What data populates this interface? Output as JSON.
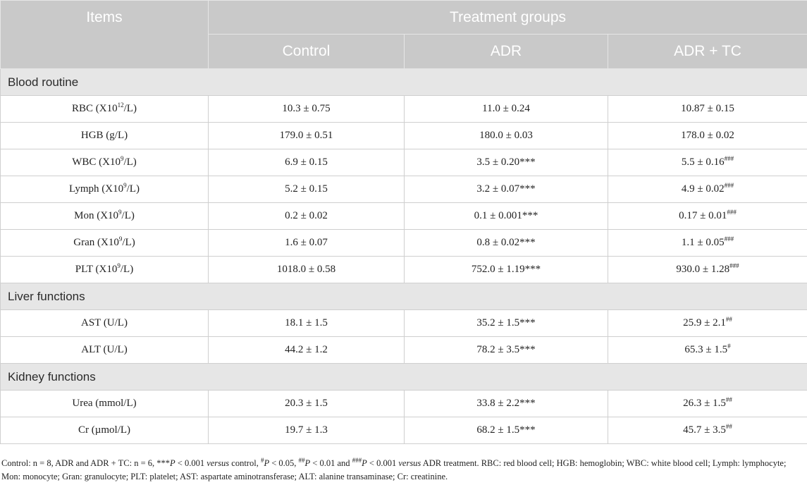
{
  "table": {
    "header": {
      "items": "Items",
      "treatment_groups": "Treatment groups",
      "groups": [
        "Control",
        "ADR",
        "ADR + TC"
      ]
    },
    "sections": [
      {
        "title": "Blood routine",
        "rows": [
          {
            "item_main": "RBC (X10",
            "item_sup": "12",
            "item_tail": "/L)",
            "cells": [
              {
                "value": "10.3 ± 0.75",
                "mark": ""
              },
              {
                "value": "11.0 ± 0.24",
                "mark": ""
              },
              {
                "value": "10.87 ± 0.15",
                "mark": ""
              }
            ]
          },
          {
            "item_main": "HGB (g/L)",
            "item_sup": "",
            "item_tail": "",
            "cells": [
              {
                "value": "179.0 ± 0.51",
                "mark": ""
              },
              {
                "value": "180.0 ± 0.03",
                "mark": ""
              },
              {
                "value": "178.0 ± 0.02",
                "mark": ""
              }
            ]
          },
          {
            "item_main": "WBC (X10",
            "item_sup": "9",
            "item_tail": "/L)",
            "cells": [
              {
                "value": "6.9 ± 0.15",
                "mark": ""
              },
              {
                "value": "3.5 ± 0.20***",
                "mark": ""
              },
              {
                "value": "5.5 ± 0.16",
                "mark": "###"
              }
            ]
          },
          {
            "item_main": "Lymph (X10",
            "item_sup": "9",
            "item_tail": "/L)",
            "cells": [
              {
                "value": "5.2 ± 0.15",
                "mark": ""
              },
              {
                "value": "3.2 ± 0.07***",
                "mark": ""
              },
              {
                "value": "4.9 ± 0.02",
                "mark": "###"
              }
            ]
          },
          {
            "item_main": "Mon (X10",
            "item_sup": "9",
            "item_tail": "/L)",
            "cells": [
              {
                "value": "0.2 ± 0.02",
                "mark": ""
              },
              {
                "value": "0.1 ± 0.001***",
                "mark": ""
              },
              {
                "value": "0.17 ± 0.01",
                "mark": "###"
              }
            ]
          },
          {
            "item_main": "Gran (X10",
            "item_sup": "9",
            "item_tail": "/L)",
            "cells": [
              {
                "value": "1.6 ± 0.07",
                "mark": ""
              },
              {
                "value": "0.8 ± 0.02***",
                "mark": ""
              },
              {
                "value": "1.1 ± 0.05",
                "mark": "###"
              }
            ]
          },
          {
            "item_main": "PLT (X10",
            "item_sup": "9",
            "item_tail": "/L)",
            "cells": [
              {
                "value": "1018.0 ± 0.58",
                "mark": ""
              },
              {
                "value": "752.0 ± 1.19***",
                "mark": ""
              },
              {
                "value": "930.0 ± 1.28",
                "mark": "###"
              }
            ]
          }
        ]
      },
      {
        "title": "Liver functions",
        "rows": [
          {
            "item_main": "AST (U/L)",
            "item_sup": "",
            "item_tail": "",
            "cells": [
              {
                "value": "18.1 ± 1.5",
                "mark": ""
              },
              {
                "value": "35.2 ± 1.5***",
                "mark": ""
              },
              {
                "value": "25.9 ± 2.1",
                "mark": "##"
              }
            ]
          },
          {
            "item_main": "ALT (U/L)",
            "item_sup": "",
            "item_tail": "",
            "cells": [
              {
                "value": "44.2 ± 1.2",
                "mark": ""
              },
              {
                "value": "78.2 ± 3.5***",
                "mark": ""
              },
              {
                "value": "65.3 ± 1.5",
                "mark": "#"
              }
            ]
          }
        ]
      },
      {
        "title": "Kidney functions",
        "rows": [
          {
            "item_main": "Urea (mmol/L)",
            "item_sup": "",
            "item_tail": "",
            "cells": [
              {
                "value": "20.3 ± 1.5",
                "mark": ""
              },
              {
                "value": "33.8 ± 2.2***",
                "mark": ""
              },
              {
                "value": "26.3 ± 1.5",
                "mark": "##"
              }
            ]
          },
          {
            "item_main": "Cr (µmol/L)",
            "item_sup": "",
            "item_tail": "",
            "cells": [
              {
                "value": "19.7 ± 1.3",
                "mark": ""
              },
              {
                "value": "68.2 ± 1.5***",
                "mark": ""
              },
              {
                "value": "45.7 ± 3.5",
                "mark": "##"
              }
            ]
          }
        ]
      }
    ]
  },
  "footnote": {
    "p1": "Control: n = 8, ADR and ADR + TC: n = 6, ***",
    "p2": "P",
    "p3": " < 0.001 ",
    "p4": "versus",
    "p5": " control, ",
    "p6": "#",
    "p7": "P",
    "p8": " < 0.05, ",
    "p9": "##",
    "p10": "P",
    "p11": " < 0.01 and ",
    "p12": "###",
    "p13": "P",
    "p14": " < 0.001 ",
    "p15": "versus",
    "p16": " ADR treatment. RBC: red blood cell; HGB: hemoglobin; WBC: white blood cell; Lymph: lymphocyte; Mon: monocyte; Gran: granulocyte; PLT: platelet; AST: aspartate aminotransferase; ALT: alanine transaminase; Cr: creatinine."
  }
}
